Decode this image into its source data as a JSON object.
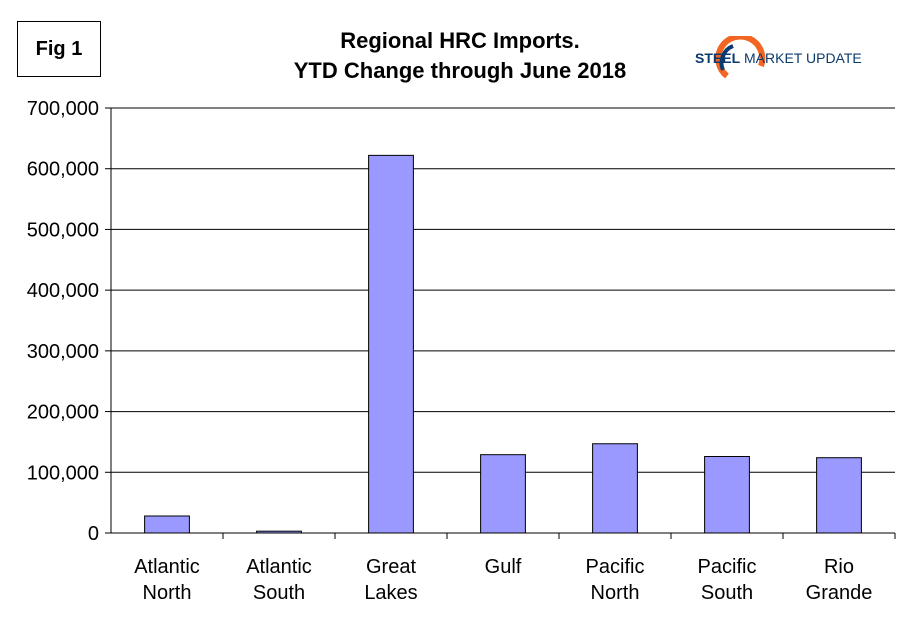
{
  "fig_label": "Fig 1",
  "title_line1": "Regional HRC Imports.",
  "title_line2": "YTD Change through June 2018",
  "logo": {
    "bold": "STEEL",
    "light": "MARKET UPDATE",
    "icon": "swoosh-icon"
  },
  "chart_data": {
    "type": "bar",
    "title": "Regional HRC Imports. YTD Change through June 2018",
    "categories": [
      [
        "Atlantic",
        "North"
      ],
      [
        "Atlantic",
        "South"
      ],
      [
        "Great",
        "Lakes"
      ],
      [
        "Gulf"
      ],
      [
        "Pacific",
        "North"
      ],
      [
        "Pacific",
        "South"
      ],
      [
        "Rio",
        "Grande"
      ]
    ],
    "values": [
      28000,
      3000,
      622000,
      129000,
      147000,
      126000,
      124000
    ],
    "ylim": [
      0,
      700000
    ],
    "yticks": [
      0,
      100000,
      200000,
      300000,
      400000,
      500000,
      600000,
      700000
    ],
    "ytick_labels": [
      "0",
      "100,000",
      "200,000",
      "300,000",
      "400,000",
      "500,000",
      "600,000",
      "700,000"
    ],
    "grid": true,
    "bar_color": "#9999ff",
    "bar_stroke": "#000000"
  }
}
